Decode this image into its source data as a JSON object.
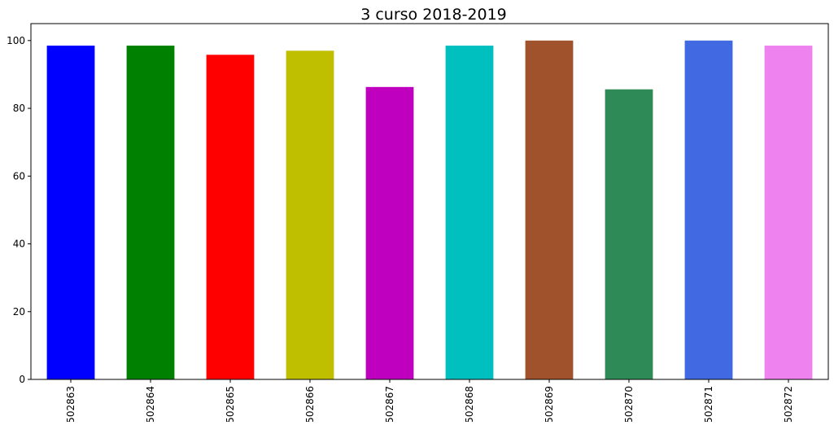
{
  "chart_data": {
    "type": "bar",
    "title": "3 curso 2018-2019",
    "xlabel": "",
    "ylabel": "",
    "categories": [
      "502863",
      "502864",
      "502865",
      "502866",
      "502867",
      "502868",
      "502869",
      "502870",
      "502871",
      "502872"
    ],
    "values": [
      98.5,
      98.5,
      95.8,
      97.0,
      86.3,
      98.5,
      100.0,
      85.6,
      100.0,
      98.5
    ],
    "colors": [
      "#0000ff",
      "#008000",
      "#ff0000",
      "#bfbf00",
      "#bf00bf",
      "#00bfbf",
      "#a0522d",
      "#2e8b57",
      "#4169e1",
      "#ee82ee"
    ],
    "ylim": [
      0,
      105
    ],
    "yticks": [
      0,
      20,
      40,
      60,
      80,
      100
    ],
    "grid": false,
    "legend": "none"
  }
}
